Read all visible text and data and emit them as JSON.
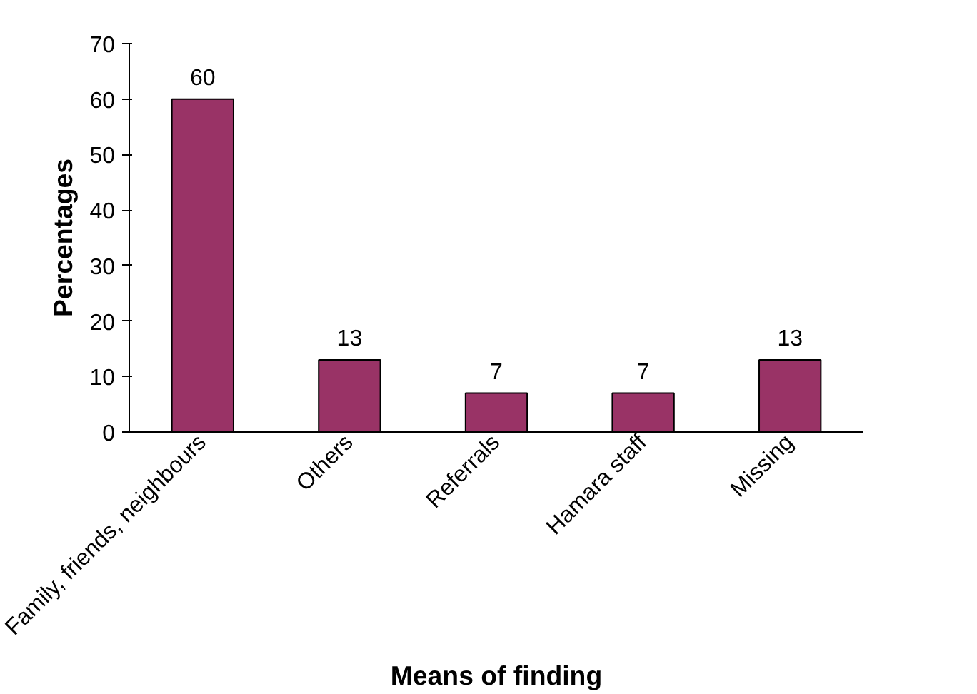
{
  "chart_data": {
    "type": "bar",
    "xlabel": "Means of finding",
    "ylabel": "Percentages",
    "categories": [
      "Family, friends, neighbours",
      "Others",
      "Referrals",
      "Hamara staff",
      "Missing"
    ],
    "values": [
      60,
      13,
      7,
      7,
      13
    ],
    "color": "#993366",
    "ylim": [
      0,
      70
    ],
    "yticks": [
      0,
      10,
      20,
      30,
      40,
      50,
      60,
      70
    ],
    "data_labels": true,
    "grid": false
  }
}
